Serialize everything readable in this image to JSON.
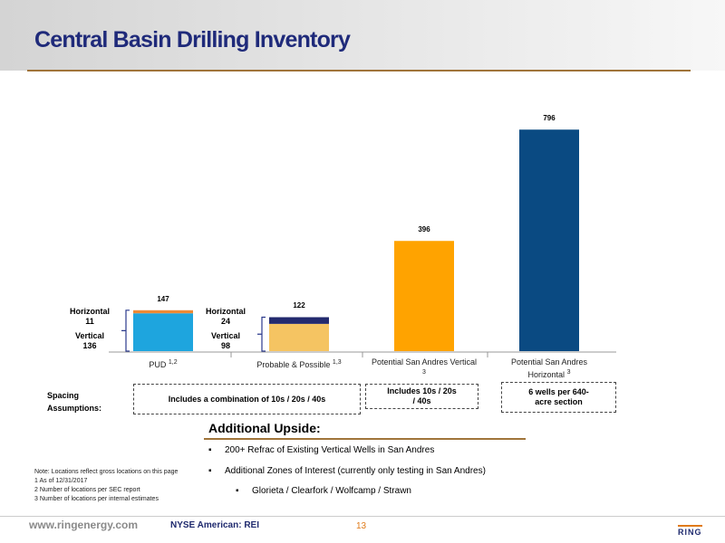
{
  "header": {
    "title": "Central Basin Drilling Inventory"
  },
  "chart_data": {
    "type": "stacked-bar",
    "ylim": [
      0,
      800
    ],
    "bars": [
      {
        "category": "PUD",
        "superscript": "1,2",
        "total": 147,
        "segments": [
          {
            "name": "Vertical",
            "value": 136,
            "color": "#1ea5de"
          },
          {
            "name": "Horizontal",
            "value": 11,
            "color": "#ee8a35"
          }
        ]
      },
      {
        "category": "Probable & Possible",
        "superscript": "1,3",
        "total": 122,
        "segments": [
          {
            "name": "Vertical",
            "value": 98,
            "color": "#f5c462"
          },
          {
            "name": "Horizontal",
            "value": 24,
            "color": "#232a6e"
          }
        ]
      },
      {
        "category": "Potential San Andres Vertical",
        "superscript": "3",
        "total": 396,
        "color": "#ffa300"
      },
      {
        "category": "Potential San Andres Horizontal",
        "superscript": "3",
        "total": 796,
        "color": "#0a4a82"
      }
    ]
  },
  "spacing": {
    "label": "Spacing Assumptions:",
    "boxes": [
      "Includes a combination of 10s / 20s / 40s",
      "Includes 10s / 20s / 40s",
      "6 wells per 640- acre section"
    ]
  },
  "upside": {
    "heading": "Additional Upside:",
    "bullets": [
      "200+ Refrac of Existing Vertical  Wells in San Andres",
      "Additional Zones of Interest (currently only testing in San Andres)"
    ],
    "sub_bullets": [
      "Glorieta / Clearfork / Wolfcamp / Strawn"
    ]
  },
  "notes": [
    "Note: Locations reflect gross locations on this page",
    "1 As of 12/31/2017",
    "2 Number of locations per SEC report",
    "3 Number of locations per internal estimates"
  ],
  "footer": {
    "website": "www.ringenergy.com",
    "ticker": "NYSE American: REI",
    "page": 13,
    "logo": "RING"
  }
}
